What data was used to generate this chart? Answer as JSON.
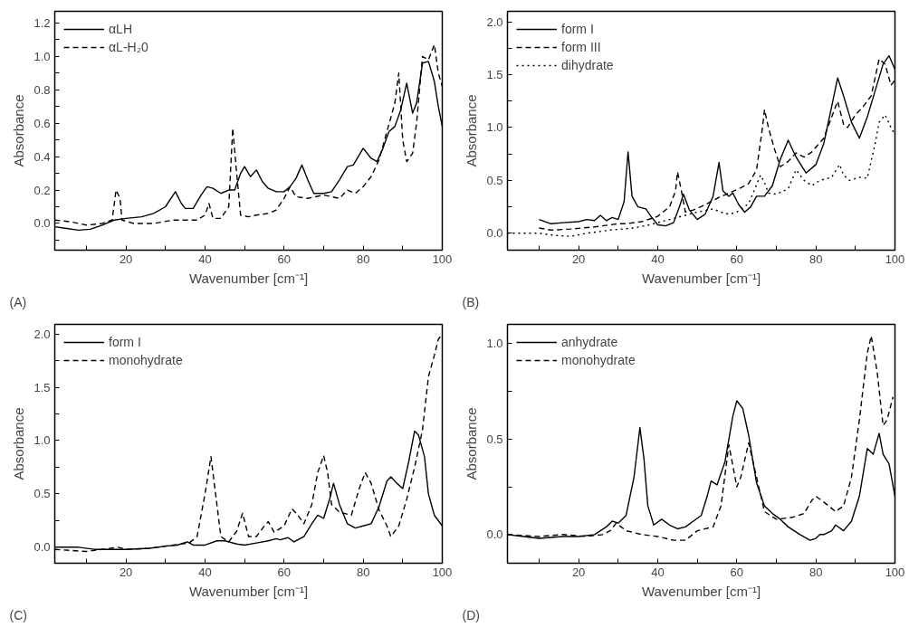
{
  "chart_data": [
    {
      "type": "line",
      "xlabel": "Wavenumber [cm⁻¹]",
      "ylabel": "Absorbance",
      "annotations": [
        "(A)"
      ],
      "legend": "top left",
      "grid": false,
      "xlim": [
        2,
        100
      ],
      "ylim": [
        -0.16,
        1.27
      ],
      "xticks": [
        {
          "value": 10,
          "label": null
        },
        20,
        {
          "value": 30,
          "label": null
        },
        40,
        {
          "value": 50,
          "label": null
        },
        60,
        {
          "value": 70,
          "label": null
        },
        80,
        {
          "value": 90,
          "label": null
        },
        100
      ],
      "yticks": [
        {
          "value": -0.1,
          "label": null
        },
        {
          "value": 0,
          "label": "0.0"
        },
        {
          "value": 0.1,
          "label": null
        },
        0.2,
        {
          "value": 0.3,
          "label": null
        },
        0.4,
        {
          "value": 0.5,
          "label": null
        },
        0.6,
        {
          "value": 0.7,
          "label": null
        },
        0.8,
        {
          "value": 0.9,
          "label": null
        },
        {
          "value": 1,
          "label": "1.0"
        },
        {
          "value": 1.1,
          "label": null
        },
        1.2
      ],
      "series": [
        {
          "name": "αLH",
          "color": "#000000",
          "line_style": "solid",
          "x": [
            2,
            5,
            8,
            11,
            14,
            17,
            20,
            24,
            27,
            30,
            32.5,
            34,
            35,
            37,
            39,
            40.5,
            42,
            44,
            46,
            47.5,
            49,
            50,
            51.5,
            53,
            54.5,
            56,
            58,
            60,
            61.5,
            63,
            64.5,
            66,
            67.5,
            70,
            72,
            74,
            76,
            77.5,
            80,
            82,
            83.5,
            85,
            86.5,
            88,
            89.5,
            91,
            92.5,
            93.5,
            95,
            96.5,
            98,
            99,
            100
          ],
          "values": [
            -0.02,
            -0.03,
            -0.04,
            -0.035,
            -0.01,
            0.02,
            0.03,
            0.04,
            0.06,
            0.1,
            0.19,
            0.12,
            0.09,
            0.09,
            0.17,
            0.22,
            0.21,
            0.18,
            0.2,
            0.2,
            0.3,
            0.34,
            0.28,
            0.32,
            0.25,
            0.21,
            0.19,
            0.19,
            0.22,
            0.27,
            0.35,
            0.26,
            0.18,
            0.18,
            0.19,
            0.26,
            0.34,
            0.35,
            0.45,
            0.39,
            0.37,
            0.45,
            0.55,
            0.58,
            0.68,
            0.84,
            0.66,
            0.72,
            0.96,
            0.97,
            0.85,
            0.7,
            0.58
          ]
        },
        {
          "name": "αL-H₂0",
          "color": "#000000",
          "line_style": "dashed",
          "x": [
            2,
            6,
            10,
            14,
            16.5,
            17.5,
            18.5,
            19,
            22,
            27,
            32,
            38,
            40,
            41,
            42,
            44,
            46,
            47,
            48,
            49,
            51,
            53,
            56,
            58,
            60,
            61.5,
            63,
            66,
            70,
            72,
            74,
            76,
            78,
            80,
            82,
            84,
            86,
            88,
            89,
            90,
            91,
            92.5,
            93.5,
            95,
            96.5,
            98,
            99,
            100
          ],
          "values": [
            0.02,
            0.01,
            -0.01,
            0,
            0.02,
            0.2,
            0.15,
            0.02,
            0,
            0,
            0.02,
            0.02,
            0.05,
            0.12,
            0.03,
            0.03,
            0.1,
            0.57,
            0.3,
            0.05,
            0.04,
            0.05,
            0.06,
            0.08,
            0.15,
            0.22,
            0.16,
            0.15,
            0.17,
            0.16,
            0.15,
            0.2,
            0.18,
            0.22,
            0.28,
            0.38,
            0.55,
            0.72,
            0.9,
            0.5,
            0.37,
            0.42,
            0.6,
            1.0,
            0.98,
            1.07,
            0.9,
            0.82
          ]
        }
      ]
    },
    {
      "type": "line",
      "xlabel": "Wavenumber [cm⁻¹]",
      "ylabel": "Absorbance",
      "annotations": [
        "(B)"
      ],
      "legend": "top left",
      "grid": false,
      "xlim": [
        2,
        100
      ],
      "ylim": [
        -0.16,
        2.1
      ],
      "xticks": [
        {
          "value": 10,
          "label": null
        },
        20,
        {
          "value": 30,
          "label": null
        },
        40,
        {
          "value": 50,
          "label": null
        },
        60,
        {
          "value": 70,
          "label": null
        },
        80,
        {
          "value": 90,
          "label": null
        },
        100
      ],
      "yticks": [
        {
          "value": 0,
          "label": "0.0"
        },
        {
          "value": 0.25,
          "label": null
        },
        0.5,
        {
          "value": 0.75,
          "label": null
        },
        {
          "value": 1,
          "label": "1.0"
        },
        {
          "value": 1.25,
          "label": null
        },
        1.5,
        {
          "value": 1.75,
          "label": null
        },
        {
          "value": 2,
          "label": "2.0"
        }
      ],
      "series": [
        {
          "name": "form I",
          "color": "#000000",
          "line_style": "solid",
          "x": [
            10,
            13,
            16,
            20,
            22,
            24,
            25.5,
            27,
            28.5,
            30,
            31.5,
            32.5,
            33.5,
            35,
            37,
            38.5,
            40,
            42,
            44,
            45.5,
            46.5,
            48,
            50,
            52,
            54,
            55.5,
            56.5,
            58,
            59,
            60.5,
            62,
            63.5,
            65,
            67,
            69,
            71,
            73,
            75,
            77.5,
            80,
            82,
            84,
            85.5,
            87,
            89,
            91,
            93,
            95,
            97,
            98.5,
            100
          ],
          "values": [
            0.13,
            0.09,
            0.1,
            0.11,
            0.13,
            0.12,
            0.17,
            0.12,
            0.15,
            0.13,
            0.3,
            0.77,
            0.35,
            0.25,
            0.23,
            0.15,
            0.08,
            0.07,
            0.1,
            0.25,
            0.37,
            0.22,
            0.13,
            0.18,
            0.35,
            0.67,
            0.4,
            0.35,
            0.38,
            0.27,
            0.2,
            0.25,
            0.35,
            0.35,
            0.45,
            0.7,
            0.88,
            0.72,
            0.57,
            0.65,
            0.85,
            1.2,
            1.47,
            1.3,
            1.05,
            0.9,
            1.1,
            1.35,
            1.6,
            1.68,
            1.55
          ]
        },
        {
          "name": "form III",
          "color": "#000000",
          "line_style": "dashed",
          "x": [
            10,
            13,
            18,
            24,
            30,
            32,
            36,
            40,
            43,
            44.5,
            45,
            46,
            47,
            49,
            52,
            55,
            58,
            61,
            63,
            65,
            66.5,
            67,
            68,
            69.5,
            71,
            73,
            75,
            77,
            79,
            82,
            84,
            85.5,
            87,
            88,
            90,
            92,
            94,
            96,
            97.5,
            99,
            100
          ],
          "values": [
            0.05,
            0.03,
            0.04,
            0.06,
            0.09,
            0.09,
            0.11,
            0.16,
            0.25,
            0.4,
            0.58,
            0.4,
            0.2,
            0.22,
            0.27,
            0.33,
            0.38,
            0.43,
            0.47,
            0.6,
            1.0,
            1.17,
            1.0,
            0.8,
            0.63,
            0.68,
            0.76,
            0.72,
            0.77,
            0.9,
            1.1,
            1.25,
            1.03,
            1.0,
            1.12,
            1.2,
            1.3,
            1.65,
            1.6,
            1.4,
            1.45
          ]
        },
        {
          "name": "dihydrate",
          "color": "#000000",
          "line_style": "dotted",
          "x": [
            2,
            6,
            10,
            14,
            18,
            22,
            28,
            34,
            38,
            42,
            45,
            50,
            54,
            56,
            58,
            60,
            63,
            66,
            67,
            68,
            70,
            73,
            75,
            77,
            79,
            81,
            84,
            86,
            87,
            88.5,
            91,
            93,
            95,
            96,
            97.5,
            99,
            100
          ],
          "values": [
            0,
            0,
            0,
            -0.02,
            -0.03,
            0,
            0.03,
            0.05,
            0.08,
            0.12,
            0.15,
            0.2,
            0.23,
            0.2,
            0.18,
            0.2,
            0.28,
            0.55,
            0.48,
            0.38,
            0.37,
            0.42,
            0.6,
            0.5,
            0.45,
            0.5,
            0.53,
            0.65,
            0.55,
            0.5,
            0.53,
            0.52,
            0.85,
            1.05,
            1.12,
            1.0,
            0.93
          ]
        }
      ]
    },
    {
      "type": "line",
      "xlabel": "Wavenumber [cm⁻¹]",
      "ylabel": "Absorbance",
      "annotations": [
        "(C)"
      ],
      "legend": "top left",
      "grid": false,
      "xlim": [
        2,
        100
      ],
      "ylim": [
        -0.15,
        2.09
      ],
      "xticks": [
        {
          "value": 10,
          "label": null
        },
        20,
        {
          "value": 30,
          "label": null
        },
        40,
        {
          "value": 50,
          "label": null
        },
        60,
        {
          "value": 70,
          "label": null
        },
        80,
        {
          "value": 90,
          "label": null
        },
        100
      ],
      "yticks": [
        {
          "value": 0,
          "label": "0.0"
        },
        {
          "value": 0.25,
          "label": null
        },
        0.5,
        {
          "value": 0.75,
          "label": null
        },
        {
          "value": 1,
          "label": "1.0"
        },
        {
          "value": 1.25,
          "label": null
        },
        1.5,
        {
          "value": 1.75,
          "label": null
        },
        {
          "value": 2,
          "label": "2.0"
        }
      ],
      "series": [
        {
          "name": "form I",
          "color": "#000000",
          "line_style": "solid",
          "x": [
            2,
            8,
            12,
            20,
            26,
            30,
            33,
            35.5,
            37,
            40,
            43,
            45,
            48,
            50,
            53,
            56,
            58,
            59,
            61,
            62.5,
            65,
            67,
            68.5,
            70,
            71.5,
            72.5,
            74,
            76,
            78,
            80,
            82,
            84,
            86,
            87,
            88.5,
            90,
            91.5,
            93,
            94,
            95.5,
            96.5,
            98,
            100
          ],
          "values": [
            0,
            0,
            -0.02,
            -0.02,
            -0.01,
            0.01,
            0.02,
            0.05,
            0.02,
            0.02,
            0.06,
            0.06,
            0.03,
            0.02,
            0.04,
            0.06,
            0.08,
            0.07,
            0.09,
            0.05,
            0.1,
            0.22,
            0.3,
            0.27,
            0.45,
            0.6,
            0.4,
            0.22,
            0.18,
            0.2,
            0.22,
            0.38,
            0.62,
            0.66,
            0.6,
            0.55,
            0.8,
            1.09,
            1.05,
            0.85,
            0.5,
            0.3,
            0.2
          ]
        },
        {
          "name": "monohydrate",
          "color": "#000000",
          "line_style": "dashed",
          "x": [
            2,
            10,
            14,
            18,
            20,
            26,
            32,
            36,
            38,
            40,
            41.5,
            42.5,
            44,
            46,
            48,
            49.5,
            51,
            53,
            55,
            56,
            57.5,
            60,
            62,
            63.5,
            65,
            67,
            68.5,
            70,
            71,
            72,
            74,
            77,
            79,
            80.5,
            82,
            84,
            86,
            87,
            89,
            91,
            93,
            95,
            96.5,
            98,
            99,
            100
          ],
          "values": [
            -0.02,
            -0.04,
            -0.02,
            0,
            -0.02,
            -0.01,
            0.02,
            0.04,
            0.1,
            0.5,
            0.85,
            0.55,
            0.1,
            0.05,
            0.15,
            0.32,
            0.1,
            0.1,
            0.2,
            0.24,
            0.14,
            0.2,
            0.36,
            0.3,
            0.22,
            0.4,
            0.7,
            0.86,
            0.7,
            0.4,
            0.33,
            0.3,
            0.55,
            0.7,
            0.6,
            0.35,
            0.2,
            0.1,
            0.2,
            0.45,
            0.75,
            1.1,
            1.6,
            1.8,
            1.95,
            2.0
          ]
        }
      ]
    },
    {
      "type": "line",
      "xlabel": "Wavenumber [cm⁻¹]",
      "ylabel": "Absorbance",
      "annotations": [
        "(D)"
      ],
      "legend": "top left",
      "grid": false,
      "xlim": [
        2,
        100
      ],
      "ylim": [
        -0.15,
        1.1
      ],
      "xticks": [
        {
          "value": 10,
          "label": null
        },
        20,
        {
          "value": 30,
          "label": null
        },
        40,
        {
          "value": 50,
          "label": null
        },
        60,
        {
          "value": 70,
          "label": null
        },
        80,
        {
          "value": 90,
          "label": null
        },
        100
      ],
      "yticks": [
        {
          "value": 0,
          "label": "0.0"
        },
        {
          "value": 0.25,
          "label": null
        },
        0.5,
        {
          "value": 0.75,
          "label": null
        },
        {
          "value": 1,
          "label": "1.0"
        }
      ],
      "series": [
        {
          "name": "anhydrate",
          "color": "#000000",
          "line_style": "solid",
          "x": [
            2,
            6,
            10,
            16,
            20,
            24,
            27,
            28.5,
            30,
            32,
            34,
            35.5,
            36.5,
            37.5,
            39,
            41,
            43,
            45,
            47,
            49,
            51,
            52.5,
            53.5,
            55,
            57,
            59,
            60,
            61.5,
            63,
            65,
            67,
            69,
            71,
            73,
            76,
            78.5,
            80,
            81,
            82,
            84,
            85,
            87,
            89,
            91,
            93,
            94.5,
            96,
            97,
            98.5,
            100
          ],
          "values": [
            0,
            -0.01,
            -0.02,
            -0.01,
            -0.01,
            0,
            0.04,
            0.07,
            0.06,
            0.1,
            0.3,
            0.56,
            0.4,
            0.15,
            0.05,
            0.08,
            0.05,
            0.03,
            0.04,
            0.07,
            0.1,
            0.2,
            0.28,
            0.26,
            0.38,
            0.62,
            0.7,
            0.66,
            0.52,
            0.27,
            0.15,
            0.11,
            0.08,
            0.04,
            0,
            -0.03,
            -0.02,
            0,
            0,
            0.02,
            0.05,
            0.02,
            0.07,
            0.2,
            0.45,
            0.42,
            0.53,
            0.42,
            0.37,
            0.2
          ]
        },
        {
          "name": "monohydrate",
          "color": "#000000",
          "line_style": "dashed",
          "x": [
            2,
            10,
            16,
            22,
            26,
            28,
            29.5,
            32,
            36,
            40,
            44,
            47,
            50,
            54,
            56,
            58,
            60,
            61,
            63,
            65,
            67,
            70,
            74,
            77,
            79,
            80,
            82,
            85,
            87,
            89,
            91,
            93,
            94,
            95.5,
            97,
            98,
            99.5
          ],
          "values": [
            0,
            -0.01,
            0,
            -0.01,
            0,
            0.02,
            0.06,
            0.02,
            0,
            -0.01,
            -0.03,
            -0.03,
            0.02,
            0.04,
            0.15,
            0.47,
            0.25,
            0.3,
            0.48,
            0.3,
            0.12,
            0.08,
            0.09,
            0.11,
            0.18,
            0.2,
            0.17,
            0.12,
            0.15,
            0.3,
            0.6,
            0.95,
            1.04,
            0.85,
            0.57,
            0.6,
            0.72
          ]
        }
      ]
    }
  ]
}
